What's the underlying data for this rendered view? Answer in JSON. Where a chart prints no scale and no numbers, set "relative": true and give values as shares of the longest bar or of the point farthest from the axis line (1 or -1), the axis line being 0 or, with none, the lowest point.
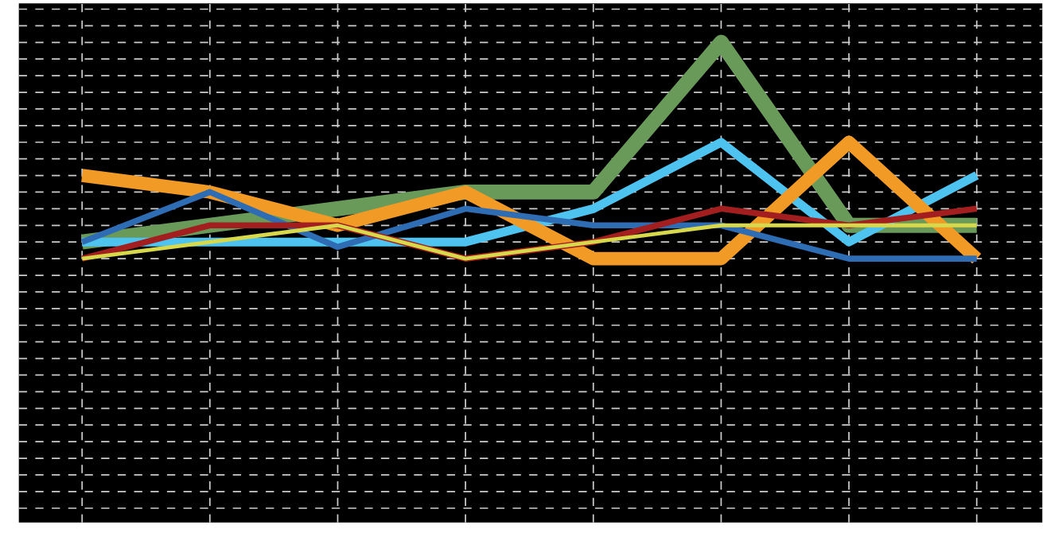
{
  "chart_data": {
    "type": "line",
    "relative": true,
    "grid": true,
    "line_style": "solid",
    "categories": [
      null,
      null,
      null,
      null,
      null,
      null,
      null,
      null
    ],
    "series": [
      {
        "color": "#6a9a5a",
        "values": [
          0.077,
          0.154,
          0.231,
          0.308,
          0.308,
          1,
          0.154,
          0.154
        ]
      },
      {
        "color": "#4fc3f0",
        "values": [
          0.077,
          0.077,
          0.077,
          0.077,
          0.231,
          0.538,
          0.077,
          0.385
        ]
      },
      {
        "color": "#f29a26",
        "values": [
          0.385,
          0.308,
          0.154,
          0.308,
          0,
          0,
          0.538,
          0
        ]
      },
      {
        "color": "#2e6db4",
        "values": [
          0.077,
          0.308,
          0.054,
          0.231,
          0.154,
          0.154,
          0,
          0
        ]
      },
      {
        "color": "#a31e1e",
        "values": [
          0,
          0.154,
          0.154,
          0,
          0.077,
          0.231,
          0.154,
          0.231
        ]
      },
      {
        "color": "#d8d84c",
        "values": [
          0,
          0.077,
          0.154,
          0,
          0.077,
          0.154,
          0.154,
          0.154
        ]
      }
    ]
  }
}
